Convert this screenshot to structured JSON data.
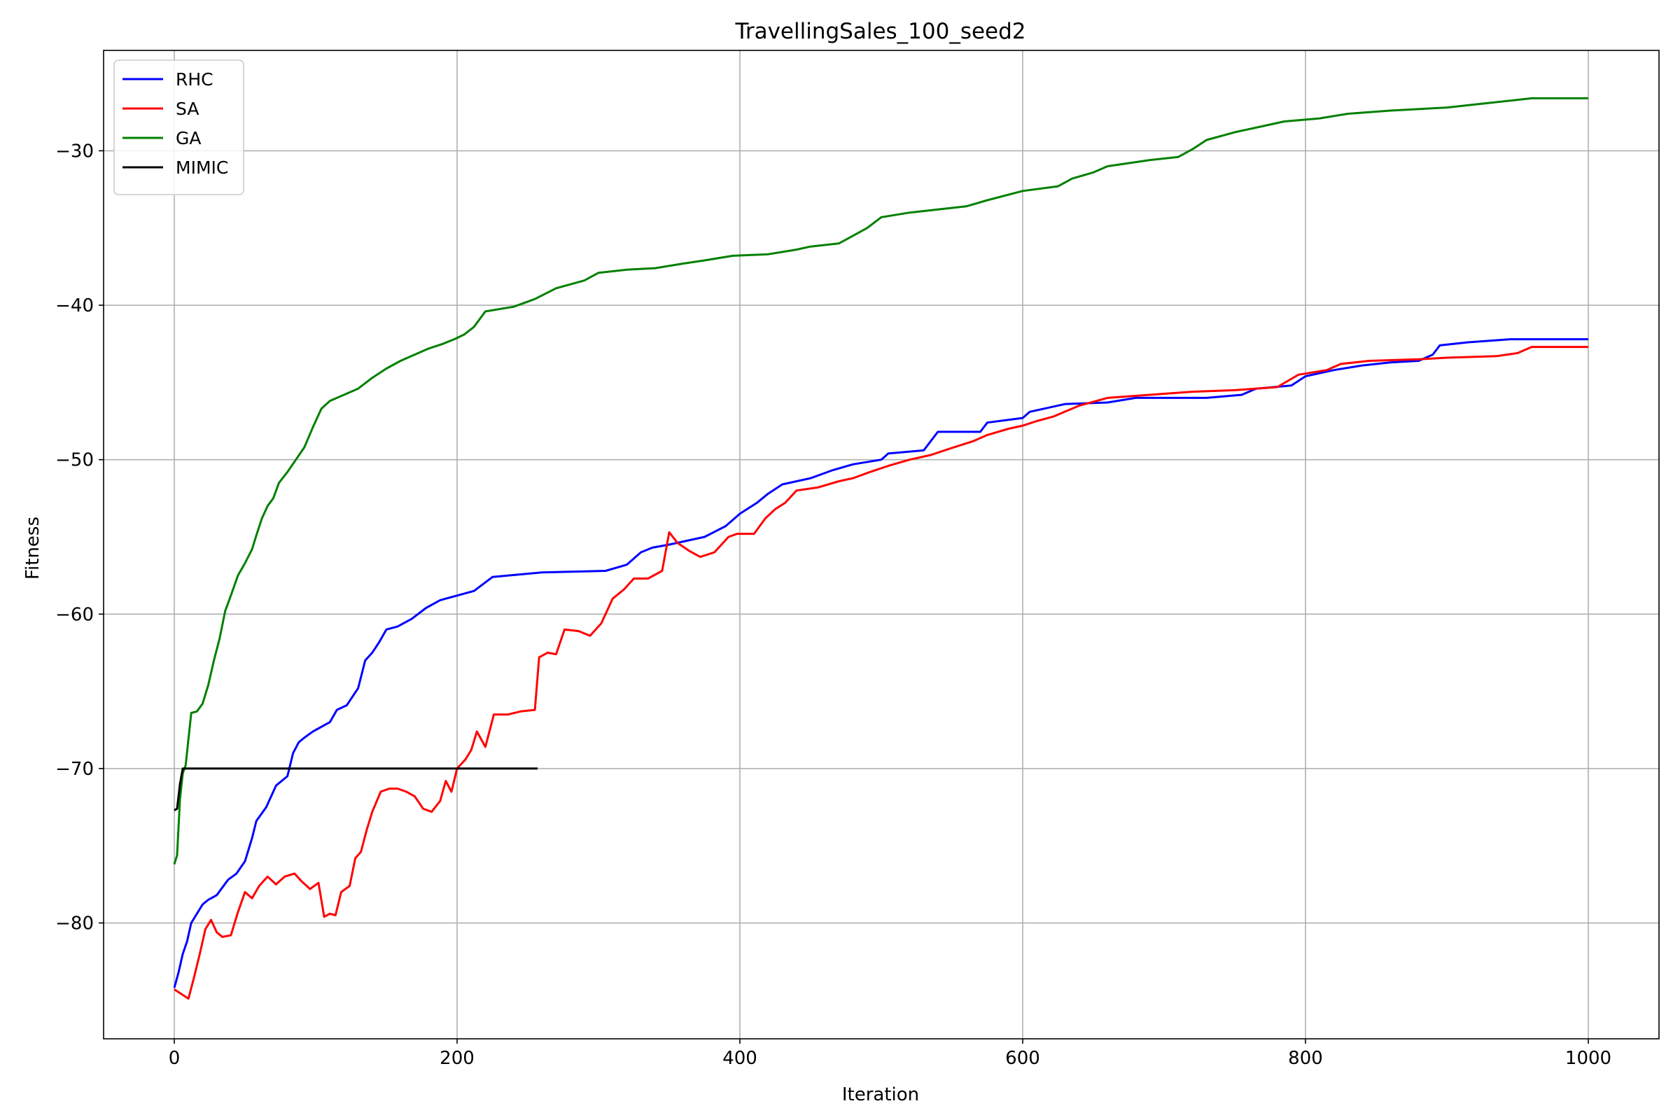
{
  "chart_data": {
    "type": "line",
    "title": "TravellingSales_100_seed2",
    "xlabel": "Iteration",
    "ylabel": "Fitness",
    "xlim": [
      -50,
      1050
    ],
    "ylim": [
      -87.5,
      -23.5
    ],
    "xticks": [
      0,
      200,
      400,
      600,
      800,
      1000
    ],
    "yticks": [
      -80,
      -70,
      -60,
      -50,
      -40,
      -30
    ],
    "grid": true,
    "legend_position": "upper-left",
    "series": [
      {
        "name": "RHC",
        "color": "#0000ff",
        "points": [
          [
            0,
            -84.2
          ],
          [
            3,
            -83.2
          ],
          [
            6,
            -82.0
          ],
          [
            9,
            -81.2
          ],
          [
            12,
            -80.0
          ],
          [
            16,
            -79.4
          ],
          [
            20,
            -78.8
          ],
          [
            24,
            -78.5
          ],
          [
            30,
            -78.2
          ],
          [
            38,
            -77.2
          ],
          [
            44,
            -76.8
          ],
          [
            50,
            -76.0
          ],
          [
            55,
            -74.5
          ],
          [
            58,
            -73.4
          ],
          [
            65,
            -72.5
          ],
          [
            72,
            -71.1
          ],
          [
            80,
            -70.5
          ],
          [
            84,
            -69.0
          ],
          [
            88,
            -68.3
          ],
          [
            92,
            -68.0
          ],
          [
            98,
            -67.6
          ],
          [
            110,
            -67.0
          ],
          [
            115,
            -66.2
          ],
          [
            122,
            -65.9
          ],
          [
            130,
            -64.8
          ],
          [
            135,
            -63.0
          ],
          [
            140,
            -62.5
          ],
          [
            145,
            -61.8
          ],
          [
            150,
            -61.0
          ],
          [
            158,
            -60.8
          ],
          [
            168,
            -60.3
          ],
          [
            178,
            -59.6
          ],
          [
            188,
            -59.1
          ],
          [
            200,
            -58.8
          ],
          [
            212,
            -58.5
          ],
          [
            225,
            -57.6
          ],
          [
            260,
            -57.3
          ],
          [
            305,
            -57.2
          ],
          [
            320,
            -56.8
          ],
          [
            330,
            -56.0
          ],
          [
            338,
            -55.7
          ],
          [
            350,
            -55.5
          ],
          [
            375,
            -55.0
          ],
          [
            390,
            -54.3
          ],
          [
            400,
            -53.5
          ],
          [
            412,
            -52.8
          ],
          [
            420,
            -52.2
          ],
          [
            430,
            -51.6
          ],
          [
            450,
            -51.2
          ],
          [
            465,
            -50.7
          ],
          [
            480,
            -50.3
          ],
          [
            500,
            -50.0
          ],
          [
            505,
            -49.6
          ],
          [
            530,
            -49.4
          ],
          [
            540,
            -48.2
          ],
          [
            570,
            -48.2
          ],
          [
            575,
            -47.6
          ],
          [
            600,
            -47.3
          ],
          [
            605,
            -46.9
          ],
          [
            630,
            -46.4
          ],
          [
            660,
            -46.3
          ],
          [
            680,
            -46.0
          ],
          [
            730,
            -46.0
          ],
          [
            755,
            -45.8
          ],
          [
            765,
            -45.4
          ],
          [
            790,
            -45.2
          ],
          [
            800,
            -44.6
          ],
          [
            820,
            -44.2
          ],
          [
            840,
            -43.9
          ],
          [
            860,
            -43.7
          ],
          [
            880,
            -43.6
          ],
          [
            890,
            -43.2
          ],
          [
            895,
            -42.6
          ],
          [
            915,
            -42.4
          ],
          [
            945,
            -42.2
          ],
          [
            1000,
            -42.2
          ]
        ]
      },
      {
        "name": "SA",
        "color": "#ff0000",
        "points": [
          [
            0,
            -84.3
          ],
          [
            5,
            -84.6
          ],
          [
            10,
            -84.9
          ],
          [
            14,
            -83.5
          ],
          [
            18,
            -82.0
          ],
          [
            22,
            -80.4
          ],
          [
            26,
            -79.8
          ],
          [
            30,
            -80.6
          ],
          [
            34,
            -80.9
          ],
          [
            40,
            -80.8
          ],
          [
            45,
            -79.3
          ],
          [
            50,
            -78.0
          ],
          [
            55,
            -78.4
          ],
          [
            60,
            -77.6
          ],
          [
            66,
            -77.0
          ],
          [
            72,
            -77.5
          ],
          [
            78,
            -77.0
          ],
          [
            85,
            -76.8
          ],
          [
            90,
            -77.3
          ],
          [
            96,
            -77.8
          ],
          [
            102,
            -77.4
          ],
          [
            106,
            -79.6
          ],
          [
            110,
            -79.4
          ],
          [
            114,
            -79.5
          ],
          [
            118,
            -78.0
          ],
          [
            124,
            -77.6
          ],
          [
            128,
            -75.8
          ],
          [
            132,
            -75.4
          ],
          [
            136,
            -74.0
          ],
          [
            140,
            -72.8
          ],
          [
            146,
            -71.5
          ],
          [
            152,
            -71.3
          ],
          [
            158,
            -71.3
          ],
          [
            164,
            -71.5
          ],
          [
            170,
            -71.8
          ],
          [
            176,
            -72.6
          ],
          [
            182,
            -72.8
          ],
          [
            188,
            -72.1
          ],
          [
            192,
            -70.8
          ],
          [
            196,
            -71.5
          ],
          [
            200,
            -70.0
          ],
          [
            206,
            -69.4
          ],
          [
            210,
            -68.8
          ],
          [
            214,
            -67.6
          ],
          [
            220,
            -68.6
          ],
          [
            226,
            -66.5
          ],
          [
            236,
            -66.5
          ],
          [
            245,
            -66.3
          ],
          [
            255,
            -66.2
          ],
          [
            258,
            -62.8
          ],
          [
            264,
            -62.5
          ],
          [
            270,
            -62.6
          ],
          [
            276,
            -61.0
          ],
          [
            286,
            -61.1
          ],
          [
            294,
            -61.4
          ],
          [
            302,
            -60.6
          ],
          [
            310,
            -59.0
          ],
          [
            318,
            -58.4
          ],
          [
            325,
            -57.7
          ],
          [
            335,
            -57.7
          ],
          [
            345,
            -57.2
          ],
          [
            350,
            -54.7
          ],
          [
            356,
            -55.4
          ],
          [
            364,
            -55.9
          ],
          [
            372,
            -56.3
          ],
          [
            382,
            -56.0
          ],
          [
            392,
            -55.0
          ],
          [
            398,
            -54.8
          ],
          [
            410,
            -54.8
          ],
          [
            418,
            -53.8
          ],
          [
            425,
            -53.2
          ],
          [
            432,
            -52.8
          ],
          [
            440,
            -52.0
          ],
          [
            455,
            -51.8
          ],
          [
            470,
            -51.4
          ],
          [
            480,
            -51.2
          ],
          [
            492,
            -50.8
          ],
          [
            505,
            -50.4
          ],
          [
            520,
            -50.0
          ],
          [
            535,
            -49.7
          ],
          [
            548,
            -49.3
          ],
          [
            565,
            -48.8
          ],
          [
            575,
            -48.4
          ],
          [
            590,
            -48.0
          ],
          [
            600,
            -47.8
          ],
          [
            610,
            -47.5
          ],
          [
            622,
            -47.2
          ],
          [
            640,
            -46.5
          ],
          [
            660,
            -46.0
          ],
          [
            690,
            -45.8
          ],
          [
            720,
            -45.6
          ],
          [
            750,
            -45.5
          ],
          [
            780,
            -45.3
          ],
          [
            795,
            -44.5
          ],
          [
            815,
            -44.2
          ],
          [
            825,
            -43.8
          ],
          [
            845,
            -43.6
          ],
          [
            880,
            -43.5
          ],
          [
            900,
            -43.4
          ],
          [
            935,
            -43.3
          ],
          [
            950,
            -43.1
          ],
          [
            960,
            -42.7
          ],
          [
            1000,
            -42.7
          ]
        ]
      },
      {
        "name": "GA",
        "color": "#008000",
        "points": [
          [
            0,
            -76.2
          ],
          [
            2,
            -75.6
          ],
          [
            4,
            -72.0
          ],
          [
            6,
            -70.3
          ],
          [
            8,
            -69.8
          ],
          [
            12,
            -66.4
          ],
          [
            16,
            -66.3
          ],
          [
            20,
            -65.8
          ],
          [
            24,
            -64.6
          ],
          [
            28,
            -63.0
          ],
          [
            32,
            -61.6
          ],
          [
            36,
            -59.8
          ],
          [
            40,
            -58.8
          ],
          [
            45,
            -57.5
          ],
          [
            50,
            -56.7
          ],
          [
            55,
            -55.8
          ],
          [
            58,
            -54.9
          ],
          [
            62,
            -53.8
          ],
          [
            66,
            -53.0
          ],
          [
            70,
            -52.5
          ],
          [
            74,
            -51.5
          ],
          [
            80,
            -50.8
          ],
          [
            86,
            -50.0
          ],
          [
            92,
            -49.2
          ],
          [
            98,
            -47.9
          ],
          [
            104,
            -46.7
          ],
          [
            110,
            -46.2
          ],
          [
            120,
            -45.8
          ],
          [
            130,
            -45.4
          ],
          [
            140,
            -44.7
          ],
          [
            150,
            -44.1
          ],
          [
            160,
            -43.6
          ],
          [
            170,
            -43.2
          ],
          [
            180,
            -42.8
          ],
          [
            190,
            -42.5
          ],
          [
            198,
            -42.2
          ],
          [
            205,
            -41.9
          ],
          [
            212,
            -41.4
          ],
          [
            220,
            -40.4
          ],
          [
            240,
            -40.1
          ],
          [
            255,
            -39.6
          ],
          [
            270,
            -38.9
          ],
          [
            290,
            -38.4
          ],
          [
            300,
            -37.9
          ],
          [
            320,
            -37.7
          ],
          [
            340,
            -37.6
          ],
          [
            360,
            -37.3
          ],
          [
            375,
            -37.1
          ],
          [
            395,
            -36.8
          ],
          [
            420,
            -36.7
          ],
          [
            440,
            -36.4
          ],
          [
            450,
            -36.2
          ],
          [
            470,
            -36.0
          ],
          [
            480,
            -35.5
          ],
          [
            490,
            -35.0
          ],
          [
            500,
            -34.3
          ],
          [
            520,
            -34.0
          ],
          [
            540,
            -33.8
          ],
          [
            560,
            -33.6
          ],
          [
            575,
            -33.2
          ],
          [
            600,
            -32.6
          ],
          [
            625,
            -32.3
          ],
          [
            635,
            -31.8
          ],
          [
            650,
            -31.4
          ],
          [
            660,
            -31.0
          ],
          [
            690,
            -30.6
          ],
          [
            710,
            -30.4
          ],
          [
            720,
            -29.9
          ],
          [
            730,
            -29.3
          ],
          [
            750,
            -28.8
          ],
          [
            770,
            -28.4
          ],
          [
            785,
            -28.1
          ],
          [
            810,
            -27.9
          ],
          [
            830,
            -27.6
          ],
          [
            860,
            -27.4
          ],
          [
            900,
            -27.2
          ],
          [
            930,
            -26.9
          ],
          [
            960,
            -26.6
          ],
          [
            1000,
            -26.6
          ]
        ]
      },
      {
        "name": "MIMIC",
        "color": "#000000",
        "points": [
          [
            0,
            -72.7
          ],
          [
            2,
            -72.6
          ],
          [
            4,
            -71.0
          ],
          [
            6,
            -70.0
          ],
          [
            257,
            -70.0
          ]
        ]
      }
    ]
  }
}
